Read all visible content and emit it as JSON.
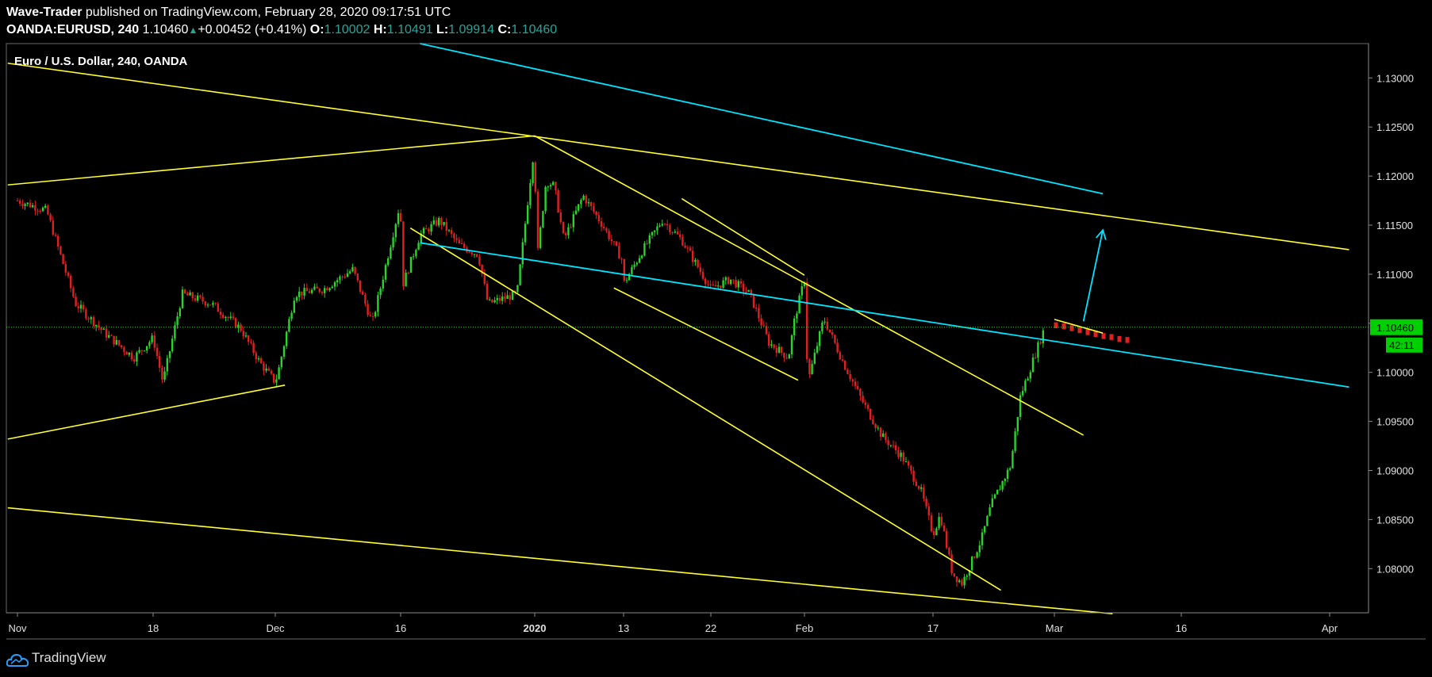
{
  "header": {
    "author": "Wave-Trader",
    "published_text": " published on TradingView.com, February 28, 2020 09:17:51 UTC",
    "symbol": "OANDA:EURUSD, 240",
    "last": "1.10460",
    "change": "+0.00452 (+0.41%)",
    "o_label": "O:",
    "o_value": "1.10002",
    "h_label": "H:",
    "h_value": "1.10491",
    "l_label": "L:",
    "l_value": "1.09914",
    "c_label": "C:",
    "c_value": "1.10460"
  },
  "footer": {
    "brand": "TradingView"
  },
  "colors": {
    "up": "#2bd32b",
    "down": "#e02020",
    "trend": "#ffff33",
    "projection": "#00e5ff",
    "price_tag": "#00d000"
  },
  "chart_data": {
    "type": "candlestick",
    "title": "Euro / U.S. Dollar, 240, OANDA",
    "x_ticks": [
      "Nov",
      "18",
      "Dec",
      "16",
      "2020",
      "13",
      "22",
      "Feb",
      "17",
      "Mar",
      "16",
      "Apr"
    ],
    "y_ticks": [
      "1.13000",
      "1.12500",
      "1.12000",
      "1.11500",
      "1.11000",
      "1.10500",
      "1.10000",
      "1.09500",
      "1.09000",
      "1.08500",
      "1.08000"
    ],
    "ylim": [
      1.0755,
      1.1335
    ],
    "current_price": 1.1046,
    "current_price_label": "1.10460",
    "countdown_label": "42:11",
    "price_path": [
      [
        "Nov",
        1.1175
      ],
      [
        "Nov+3",
        1.1165
      ],
      [
        "Nov+6",
        1.107
      ],
      [
        "Nov+9",
        1.104
      ],
      [
        "Nov+12",
        1.1015
      ],
      [
        "Nov+15",
        1.099
      ],
      [
        "18",
        1.1035
      ],
      [
        "18+3",
        1.108
      ],
      [
        "18+6",
        1.107
      ],
      [
        "18+9",
        1.1045
      ],
      [
        "18+11",
        1.101
      ],
      [
        "18+13",
        1.1005
      ],
      [
        "Dec",
        1.099
      ],
      [
        "Dec+2",
        1.108
      ],
      [
        "Dec+5",
        1.1085
      ],
      [
        "Dec+8",
        1.1105
      ],
      [
        "Dec+10",
        1.105
      ],
      [
        "Dec+13",
        1.1085
      ],
      [
        "16",
        1.1175
      ],
      [
        "16+2",
        1.114
      ],
      [
        "16+4",
        1.1155
      ],
      [
        "16+6",
        1.113
      ],
      [
        "16+8",
        1.112
      ],
      [
        "16+9",
        1.107
      ],
      [
        "16+12",
        1.108
      ],
      [
        "16+14",
        1.111
      ],
      [
        "16+15",
        1.1195
      ],
      [
        "2020",
        1.1235
      ],
      [
        "2020+2",
        1.119
      ],
      [
        "2020+3",
        1.1135
      ],
      [
        "2020+5",
        1.118
      ],
      [
        "2020+7",
        1.115
      ],
      [
        "2020+9",
        1.1115
      ],
      [
        "13",
        1.109
      ],
      [
        "13+2",
        1.1125
      ],
      [
        "13+4",
        1.1155
      ],
      [
        "13+6",
        1.1135
      ],
      [
        "22",
        1.1085
      ],
      [
        "22+2",
        1.1095
      ],
      [
        "22+4",
        1.108
      ],
      [
        "22+6",
        1.103
      ],
      [
        "22+8",
        1.1015
      ],
      [
        "22+10",
        1.099
      ],
      [
        "Feb-1",
        1.1055
      ],
      [
        "Feb",
        1.1095
      ],
      [
        "Feb+2",
        1.1055
      ],
      [
        "Feb+4",
        1.101
      ],
      [
        "Feb+6",
        1.097
      ],
      [
        "Feb+8",
        1.0935
      ],
      [
        "Feb+10",
        1.0915
      ],
      [
        "Feb+12",
        1.088
      ],
      [
        "Feb+14",
        1.0855
      ],
      [
        "17",
        1.0835
      ],
      [
        "17+2",
        1.0795
      ],
      [
        "17+3",
        1.0785
      ],
      [
        "17+5",
        1.083
      ],
      [
        "17+6",
        1.0865
      ],
      [
        "17+8",
        1.0905
      ],
      [
        "17+9",
        1.0975
      ],
      [
        "Mar-1",
        1.1046
      ]
    ],
    "consolidation": [
      1.1048,
      1.1047,
      1.1045,
      1.1043,
      1.1041,
      1.1039,
      1.1037,
      1.1036,
      1.1034,
      1.1033
    ],
    "trendlines": [
      {
        "from": [
          "Nov-1",
          1.1315
        ],
        "to": [
          "Apr+2",
          1.1125
        ]
      },
      {
        "from": [
          "Nov-1",
          1.1191
        ],
        "to": [
          "2020",
          1.1241
        ]
      },
      {
        "from": [
          "2020",
          1.1241
        ],
        "to": [
          "Mar+3",
          1.0936
        ]
      },
      {
        "from": [
          "Nov-1",
          1.0932
        ],
        "to": [
          "Dec+1",
          1.0987
        ]
      },
      {
        "from": [
          "Nov-1",
          1.0862
        ],
        "to": [
          "Mar+6",
          1.0754
        ]
      },
      {
        "from": [
          "13-1",
          1.1086
        ],
        "to": [
          "22+9",
          1.0992
        ]
      },
      {
        "from": [
          "13+6",
          1.1177
        ],
        "to": [
          "Feb",
          1.1099
        ]
      },
      {
        "from": [
          "17+7",
          1.0778
        ],
        "to": [
          "16+1",
          1.1147
        ]
      },
      {
        "from": [
          "Mar",
          1.1054
        ],
        "to": [
          "Mar+5",
          1.104
        ]
      }
    ],
    "projections": [
      {
        "from": [
          "Mar+3",
          1.1052
        ],
        "to": [
          "Mar+5",
          1.1145
        ],
        "arrow": true
      },
      {
        "from": [
          "Mar+5",
          1.1182
        ],
        "to": [
          "16+2",
          1.1335
        ]
      },
      {
        "from": [
          "16+2",
          1.1132
        ],
        "to": [
          "Apr+2",
          1.0985
        ]
      }
    ]
  }
}
